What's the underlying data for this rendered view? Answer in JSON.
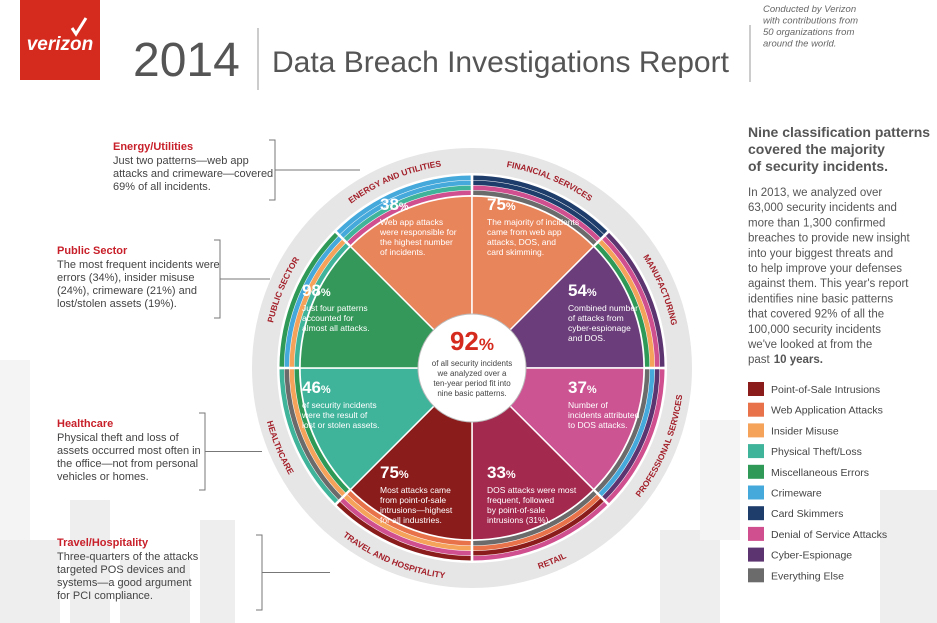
{
  "header": {
    "brand": "verizon",
    "year": "2014",
    "title": "Data Breach Investigations Report",
    "note": [
      "Conducted by Verizon",
      "with contributions from",
      "50 organizations from",
      "around the world."
    ]
  },
  "intro": {
    "heading": [
      "Nine classification patterns",
      "covered the majority",
      "of security incidents."
    ],
    "body": [
      "In 2013, we analyzed over",
      "63,000 security incidents and",
      "more than 1,300 confirmed",
      "breaches to provide new insight",
      "into your biggest threats and",
      "to help improve your defenses",
      "against them. This year's report",
      "identifies nine basic patterns",
      "that covered 92% of all the",
      "100,000 security incidents",
      "we've looked at from the",
      "past"
    ],
    "emphasis": "10 years."
  },
  "legend": {
    "items": [
      {
        "label": "Point-of-Sale Intrusions",
        "color": "#8b1c1c"
      },
      {
        "label": "Web Application Attacks",
        "color": "#e8734a"
      },
      {
        "label": "Insider Misuse",
        "color": "#f5a25b"
      },
      {
        "label": "Physical Theft/Loss",
        "color": "#40b39b"
      },
      {
        "label": "Miscellaneous Errors",
        "color": "#2f9a57"
      },
      {
        "label": "Crimeware",
        "color": "#45a9dc"
      },
      {
        "label": "Card Skimmers",
        "color": "#1f3d6b"
      },
      {
        "label": "Denial of Service Attacks",
        "color": "#d0508f"
      },
      {
        "label": "Cyber-Espionage",
        "color": "#5c3470"
      },
      {
        "label": "Everything Else",
        "color": "#6b6b6b"
      }
    ]
  },
  "center": {
    "value": "92",
    "unit": "%",
    "lines": [
      "of all security incidents",
      "we analyzed over a",
      "ten-year period fit into",
      "nine basic patterns."
    ]
  },
  "sectors": [
    {
      "name": "ENERGY AND UTILITIES",
      "value": "38",
      "unit": "%",
      "lines": [
        "Web app attacks",
        "were responsible for",
        "the highest number",
        "of incidents."
      ]
    },
    {
      "name": "FINANCIAL SERVICES",
      "value": "75",
      "unit": "%",
      "lines": [
        "The majority of incidents",
        "came from web app",
        "attacks, DOS, and",
        "card skimming."
      ]
    },
    {
      "name": "MANUFACTURING",
      "value": "54",
      "unit": "%",
      "lines": [
        "Combined number",
        "of attacks from",
        "cyber-espionage",
        "and DOS."
      ]
    },
    {
      "name": "PROFESSIONAL SERVICES",
      "value": "37",
      "unit": "%",
      "lines": [
        "Number of",
        "incidents attributed",
        "to DOS attacks."
      ]
    },
    {
      "name": "RETAIL",
      "value": "33",
      "unit": "%",
      "lines": [
        "DOS attacks were most",
        "frequent, followed",
        "by point-of-sale",
        "intrusions (31%)."
      ]
    },
    {
      "name": "TRAVEL AND HOSPITALITY",
      "value": "75",
      "unit": "%",
      "lines": [
        "Most attacks came",
        "from point-of-sale",
        "intrusions—highest",
        "for all industries."
      ]
    },
    {
      "name": "HEALTHCARE",
      "value": "46",
      "unit": "%",
      "lines": [
        "of security incidents",
        "were the result of",
        "lost or stolen assets."
      ]
    },
    {
      "name": "PUBLIC SECTOR",
      "value": "98",
      "unit": "%",
      "lines": [
        "Just four patterns",
        "accounted for",
        "almost all attacks."
      ]
    }
  ],
  "annotations": [
    {
      "title": "Energy/Utilities",
      "lines": [
        "Just two patterns—web app",
        "attacks and crimeware—covered",
        "69% of all incidents."
      ]
    },
    {
      "title": "Public Sector",
      "lines": [
        "The most frequent incidents were",
        "errors (34%), insider misuse",
        "(24%), crimeware (21%) and",
        "lost/stolen assets (19%)."
      ]
    },
    {
      "title": "Healthcare",
      "lines": [
        "Physical theft and loss of",
        "assets occurred most often in",
        "the office—not from personal",
        "vehicles or homes."
      ]
    },
    {
      "title": "Travel/Hospitality",
      "lines": [
        "Three-quarters of the attacks",
        "targeted POS devices and",
        "systems—a good argument",
        "for PCI compliance."
      ]
    }
  ]
}
